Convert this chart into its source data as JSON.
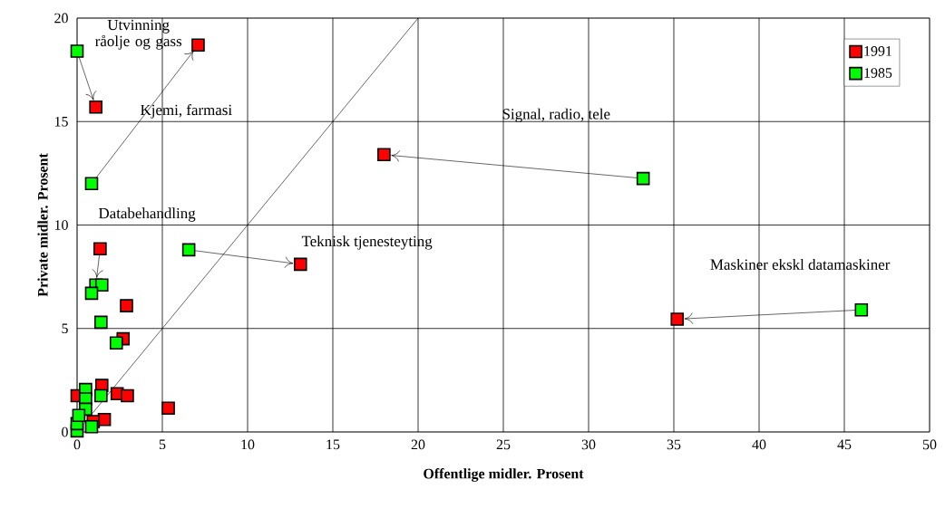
{
  "chart_data": {
    "type": "scatter",
    "xlabel": "Offentlige midler. Prosent",
    "ylabel": "Private midler. Prosent",
    "xlim": [
      0,
      50
    ],
    "ylim": [
      0,
      20
    ],
    "xticks": [
      0,
      5,
      10,
      15,
      20,
      25,
      30,
      35,
      40,
      45,
      50
    ],
    "yticks": [
      0,
      5,
      10,
      15,
      20
    ],
    "grid": true,
    "legend": "top right",
    "marker": "square",
    "series": [
      {
        "name": "1991",
        "color": "#ff0000",
        "x": [
          1.1,
          7.1,
          18.0,
          13.1,
          35.2,
          1.35,
          2.9,
          2.7,
          1.45,
          0,
          2.35,
          2.95,
          5.35,
          1.6,
          0.95
        ],
        "values": [
          15.7,
          18.7,
          13.4,
          8.1,
          5.45,
          8.85,
          6.1,
          4.5,
          2.25,
          1.75,
          1.85,
          1.75,
          1.15,
          0.6,
          0.5
        ]
      },
      {
        "name": "1985",
        "color": "#00ff00",
        "x": [
          0,
          0.85,
          33.2,
          6.55,
          46.0,
          1.1,
          1.45,
          0.85,
          1.4,
          2.3,
          0.5,
          1.4,
          0.5,
          0.5,
          0.85,
          0,
          0,
          0.1
        ],
        "values": [
          18.4,
          12.0,
          12.25,
          8.8,
          5.9,
          7.1,
          7.1,
          6.7,
          5.3,
          4.3,
          2.05,
          1.75,
          1.6,
          1.1,
          0.25,
          0.05,
          0.4,
          0.8
        ]
      },
      {
        "type": "line",
        "color": "#000000",
        "marker": "none",
        "x": [
          0,
          20
        ],
        "values": [
          0,
          20
        ]
      }
    ],
    "annotations": [
      {
        "text": "Utvinning råolje og gass",
        "x": 1.1,
        "y": 15.7
      },
      "Kjemi, farmasi",
      "Databehandling",
      "Signal, radio, tele",
      {
        "text": "Teknisk tjenesteyting",
        "x": 13.1,
        "y": 8.1
      },
      "Maskiner ekskl datamaskiner"
    ]
  }
}
